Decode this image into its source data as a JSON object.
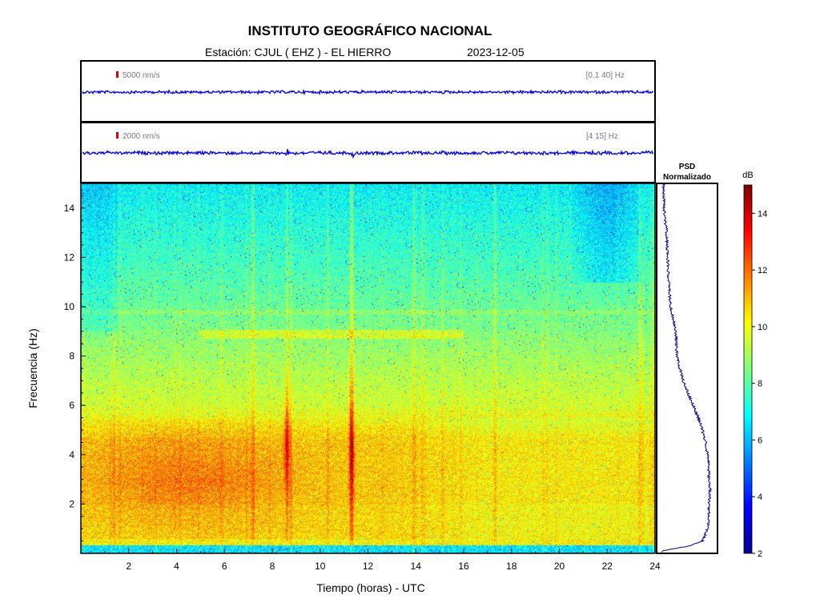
{
  "header": {
    "title": "INSTITUTO GEOGRÁFICO NACIONAL",
    "station": "Estación:  CJUL ( EHZ ) - EL HIERRO",
    "date": "2023-12-05"
  },
  "traces": [
    {
      "scale_label": "5000 nm/s",
      "band_label": "[0.1 40] Hz",
      "color": "#0000ee"
    },
    {
      "scale_label": "2000 nm/s",
      "band_label": "[4 15] Hz",
      "color": "#0000ee"
    }
  ],
  "psd": {
    "title_line1": "PSD",
    "title_line2": "Normalizado",
    "color": "#000088"
  },
  "colorbar": {
    "unit": "dB",
    "range": [
      2,
      15
    ],
    "ticks": [
      "2",
      "4",
      "6",
      "8",
      "10",
      "12",
      "14"
    ]
  },
  "chart_data": {
    "type": "heatmap",
    "title": "INSTITUTO GEOGRÁFICO NACIONAL",
    "xlabel": "Tiempo (horas) - UTC",
    "ylabel": "Frecuencia  (Hz)",
    "xlim": [
      0,
      24
    ],
    "ylim": [
      0,
      15
    ],
    "x_ticks": [
      "2",
      "4",
      "6",
      "8",
      "10",
      "12",
      "14",
      "16",
      "18",
      "20",
      "22",
      "24"
    ],
    "y_ticks": [
      "2",
      "4",
      "6",
      "8",
      "10",
      "12",
      "14"
    ],
    "value_range_db": [
      2,
      15
    ],
    "psd_profile": {
      "frequency_hz": [
        0.1,
        0.3,
        0.5,
        1,
        1.5,
        2,
        2.5,
        3,
        3.5,
        4,
        4.5,
        5,
        5.5,
        6,
        7,
        8,
        9,
        10,
        11,
        12,
        13,
        14,
        15
      ],
      "normalized_power": [
        0.02,
        0.55,
        0.8,
        0.9,
        0.92,
        0.93,
        0.95,
        0.93,
        0.92,
        0.9,
        0.86,
        0.8,
        0.72,
        0.62,
        0.42,
        0.3,
        0.28,
        0.18,
        0.14,
        0.12,
        0.1,
        0.05,
        0.04
      ]
    }
  }
}
